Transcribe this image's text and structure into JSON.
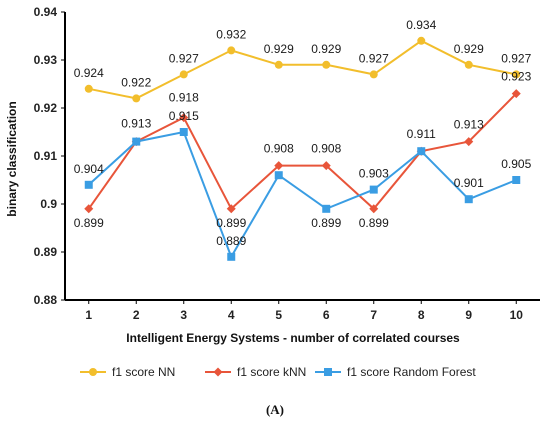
{
  "chart_data": {
    "type": "line",
    "title": "",
    "xlabel": "Intelligent Energy Systems - number of correlated courses",
    "ylabel": "binary classification",
    "categories": [
      "1",
      "2",
      "3",
      "4",
      "5",
      "6",
      "7",
      "8",
      "9",
      "10"
    ],
    "ylim": [
      0.88,
      0.94
    ],
    "yticks": [
      0.88,
      0.89,
      0.9,
      0.91,
      0.92,
      0.93,
      0.94
    ],
    "ytick_labels": [
      "0.88",
      "0.89",
      "0.9",
      "0.91",
      "0.92",
      "0.93",
      "0.94"
    ],
    "grid": false,
    "legend_position": "bottom",
    "series": [
      {
        "name": "f1 score NN",
        "color": "#F2BE2C",
        "marker": "circle",
        "values": [
          0.924,
          0.922,
          0.927,
          0.932,
          0.929,
          0.929,
          0.927,
          0.934,
          0.929,
          0.927
        ],
        "labels": [
          "0.924",
          "0.922",
          "0.927",
          "0.932",
          "0.929",
          "0.929",
          "0.927",
          "0.934",
          "0.929",
          "0.927"
        ]
      },
      {
        "name": "f1 score kNN",
        "color": "#E8553A",
        "marker": "diamond",
        "values": [
          0.899,
          0.913,
          0.918,
          0.899,
          0.908,
          0.908,
          0.899,
          0.911,
          0.913,
          0.923
        ],
        "labels": [
          "0.899",
          "0.913",
          "0.918",
          "0.899",
          "0.908",
          "0.908",
          "0.899",
          "0.911",
          "0.913",
          "0.923"
        ]
      },
      {
        "name": "f1 score Random Forest",
        "color": "#3A9DE3",
        "marker": "square",
        "values": [
          0.904,
          0.913,
          0.915,
          0.889,
          0.906,
          0.899,
          0.903,
          0.911,
          0.901,
          0.905
        ],
        "labels": [
          "0.904",
          "",
          "0.915",
          "0.889",
          "",
          "0.899",
          "0.903",
          "",
          "0.901",
          "0.905"
        ]
      }
    ]
  },
  "caption": "(A)"
}
